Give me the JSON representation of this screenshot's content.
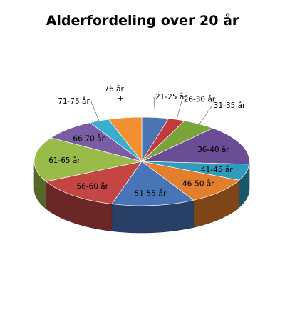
{
  "chart_data": {
    "type": "pie",
    "style": "3d",
    "title": "Alderfordeling over 20 år",
    "categories": [
      "21-25 år",
      "26-30 år",
      "31-35 år",
      "36-40 år",
      "41-45 år",
      "46-50 år",
      "51-55 år",
      "56-60 år",
      "61-65 år",
      "66-70 år",
      "71-75 år",
      "76 år +"
    ],
    "values": [
      4.0,
      2.5,
      5.0,
      14.5,
      6.0,
      10.0,
      12.5,
      13.0,
      16.5,
      8.0,
      3.0,
      5.0
    ],
    "colors": [
      "#4b74b5",
      "#c23b3a",
      "#7aa33b",
      "#6a4d95",
      "#2f9bbd",
      "#e37e2c",
      "#4874b8",
      "#c34643",
      "#98bb4a",
      "#7b5da6",
      "#3aaed0",
      "#f28f30"
    ],
    "legend": "none",
    "labels": "outside-and-inside"
  }
}
